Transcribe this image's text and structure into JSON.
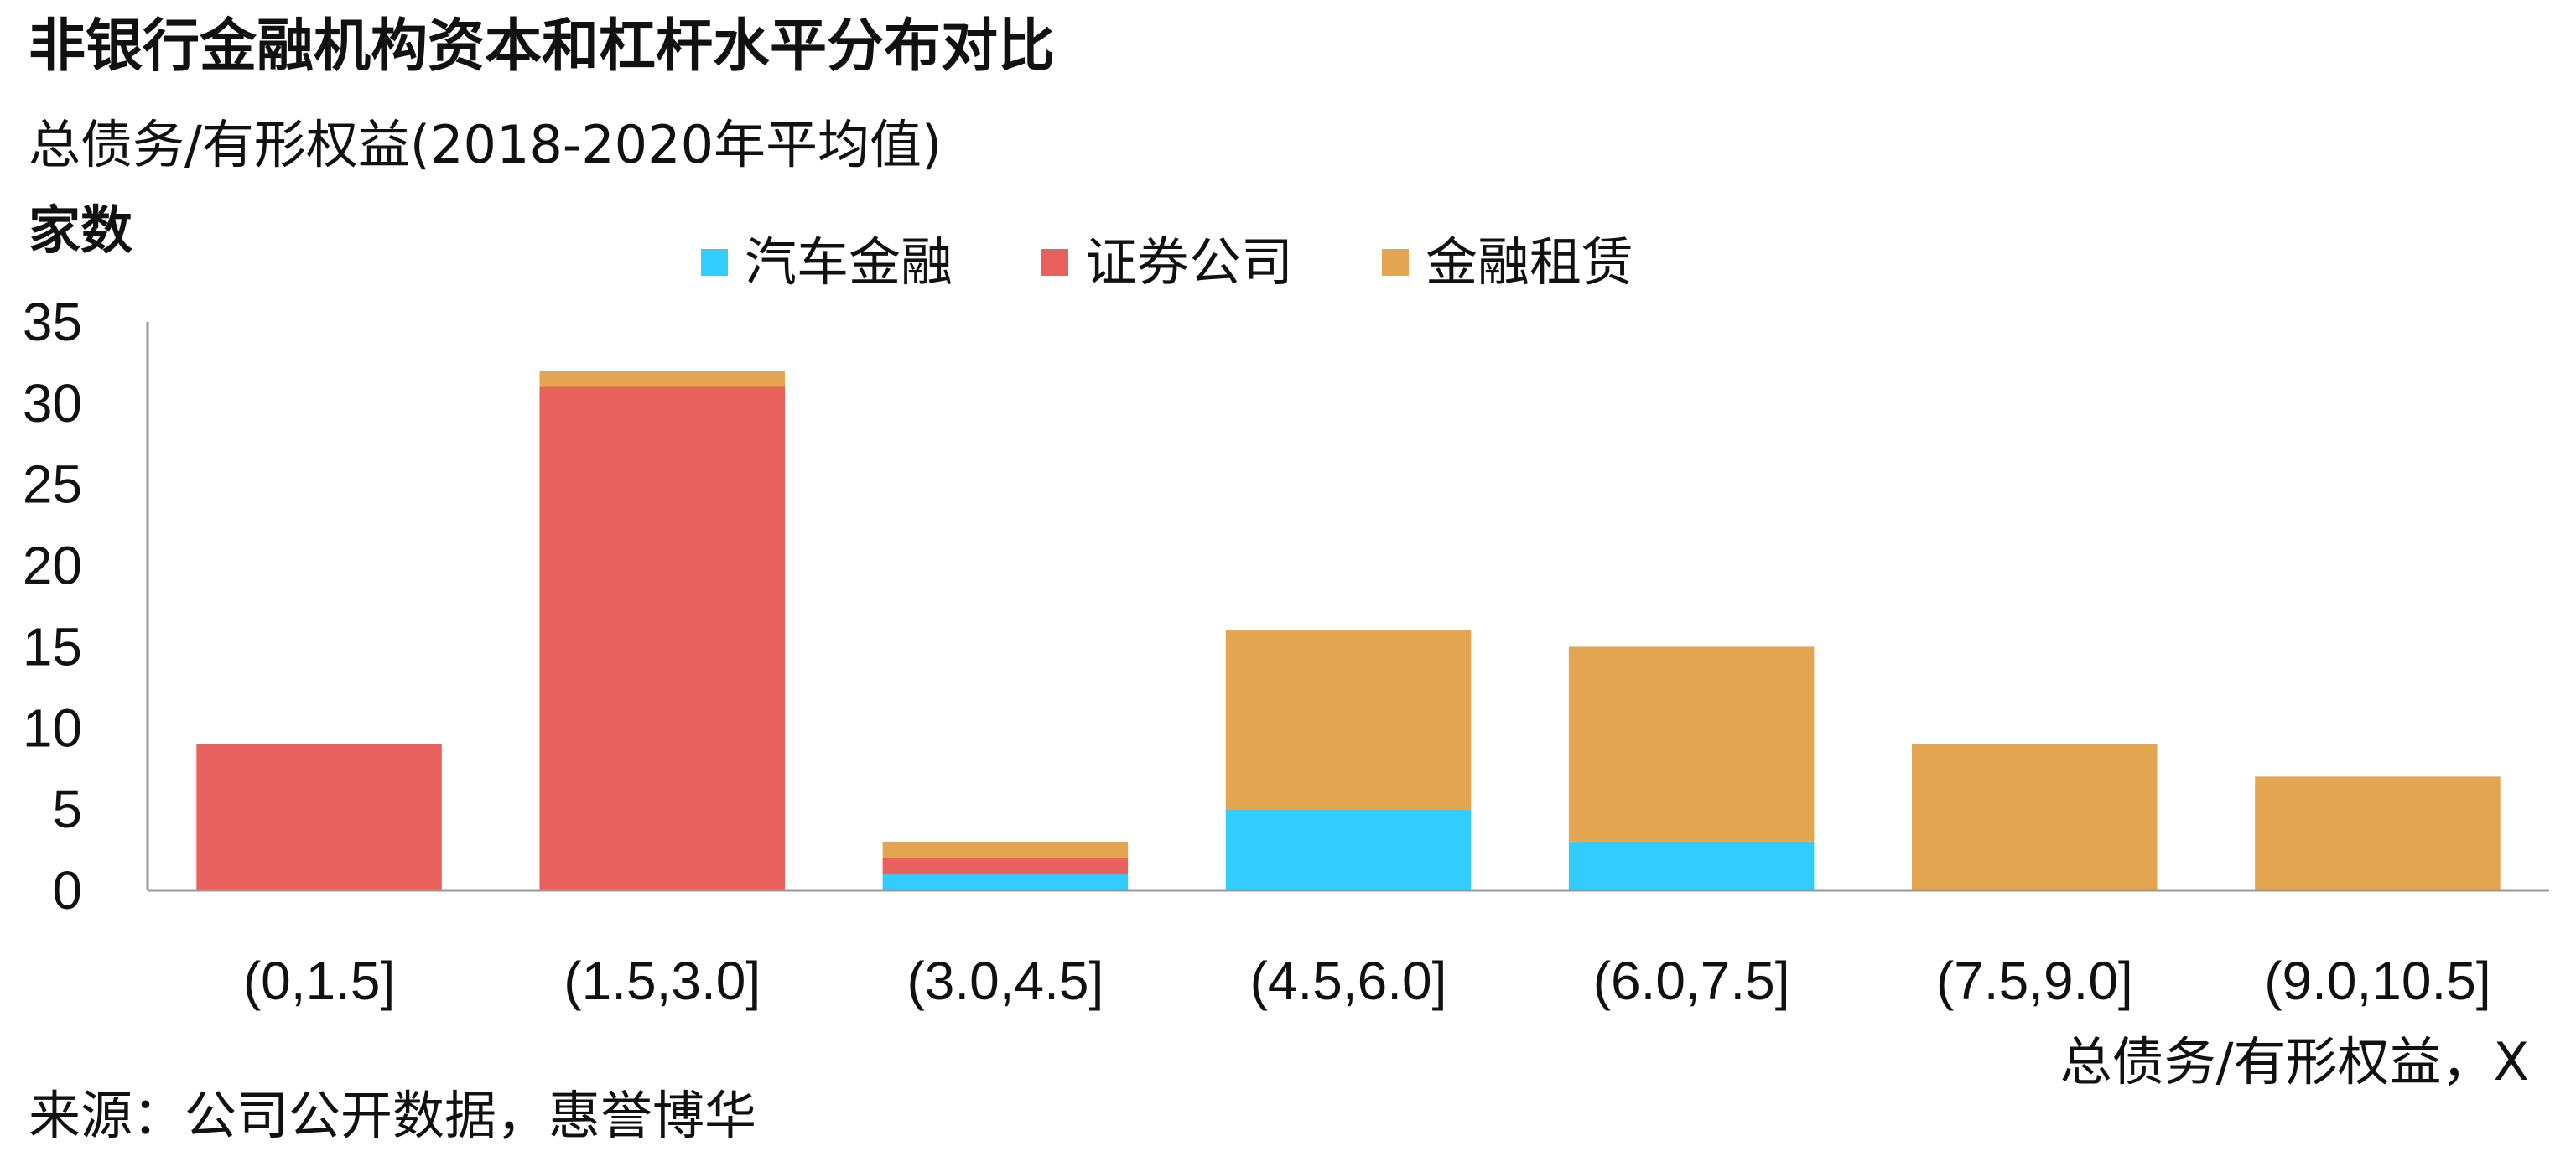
{
  "title": "非银行金融机构资本和杠杆水平分布对比",
  "subtitle": "总债务/有形权益(2018-2020年平均值)",
  "source": "来源：公司公开数据，惠誉博华",
  "colors": {
    "auto_finance": "#33CCFF",
    "securities": "#E8615C",
    "leasing": "#E3A550",
    "axis": "#999999"
  },
  "chart_data": {
    "type": "bar",
    "stacked": true,
    "categories": [
      "(0,1.5]",
      "(1.5,3.0]",
      "(3.0,4.5]",
      "(4.5,6.0]",
      "(6.0,7.5]",
      "(7.5,9.0]",
      "(9.0,10.5]"
    ],
    "series": [
      {
        "name": "汽车金融",
        "color": "#33CCFF",
        "values": [
          0,
          0,
          1,
          5,
          3,
          0,
          0
        ]
      },
      {
        "name": "证券公司",
        "color": "#E8615C",
        "values": [
          9,
          31,
          1,
          0,
          0,
          0,
          0
        ]
      },
      {
        "name": "金融租赁",
        "color": "#E3A550",
        "values": [
          0,
          1,
          1,
          11,
          12,
          9,
          7
        ]
      }
    ],
    "ylabel": "家数",
    "xlabel": "总债务/有形权益，X",
    "ylim": [
      0,
      35
    ],
    "yticks": [
      0,
      5,
      10,
      15,
      20,
      25,
      30,
      35
    ],
    "grid": false,
    "legend": "top-center"
  }
}
